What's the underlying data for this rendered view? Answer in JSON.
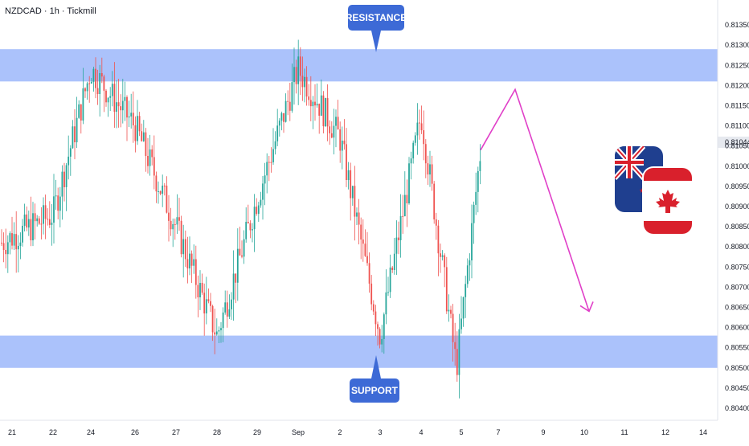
{
  "symbol_label": "NZDCAD · 1h · Tickmill",
  "price_badge": "0.81044",
  "callouts": {
    "resistance": "RESISTANCE",
    "support": "SUPPORT"
  },
  "flags": {
    "new_zealand": "new-zealand-flag-icon",
    "canada": "canada-flag-icon"
  },
  "colors": {
    "up_candle": "#26a69a",
    "down_candle": "#ef5350",
    "zone_fill": "#a7bffb",
    "callout": "#3d6ad6",
    "projection": "#e040c8",
    "price_badge_bg": "#e6e9ef"
  },
  "chart_data": {
    "type": "candlestick",
    "ylim": [
      0.8038,
      0.8138
    ],
    "y_ticks": [
      "0.81350",
      "0.81300",
      "0.81250",
      "0.81200",
      "0.81150",
      "0.81100",
      "0.81050",
      "0.81000",
      "0.80950",
      "0.80900",
      "0.80850",
      "0.80800",
      "0.80750",
      "0.80700",
      "0.80650",
      "0.80600",
      "0.80550",
      "0.80500",
      "0.80450",
      "0.80400"
    ],
    "x_ticks": [
      "21",
      "22",
      "24",
      "26",
      "27",
      "28",
      "29",
      "Sep",
      "2",
      "3",
      "4",
      "5",
      "7",
      "9",
      "10",
      "11",
      "12",
      "14"
    ],
    "current_price": 0.81044,
    "zones": [
      {
        "label": "RESISTANCE",
        "from": 0.8121,
        "to": 0.8129
      },
      {
        "label": "SUPPORT",
        "from": 0.805,
        "to": 0.8058
      }
    ],
    "price_path": [
      {
        "x": "21",
        "y": 0.8081
      },
      {
        "x": "22",
        "y": 0.8088
      },
      {
        "x": "24",
        "y": 0.8124
      },
      {
        "x": "26",
        "y": 0.811
      },
      {
        "x": "27",
        "y": 0.8085
      },
      {
        "x": "28",
        "y": 0.8058
      },
      {
        "x": "29",
        "y": 0.8092
      },
      {
        "x": "Sep",
        "y": 0.8124
      },
      {
        "x": "2",
        "y": 0.8107
      },
      {
        "x": "3",
        "y": 0.8058
      },
      {
        "x": "4",
        "y": 0.8113
      },
      {
        "x": "5",
        "y": 0.805
      },
      {
        "x": "5",
        "y": 0.8104
      }
    ],
    "projection": [
      {
        "x": "5",
        "y": 0.8104
      },
      {
        "x": "7",
        "y": 0.8119
      },
      {
        "x": "10",
        "y": 0.8064
      }
    ]
  }
}
